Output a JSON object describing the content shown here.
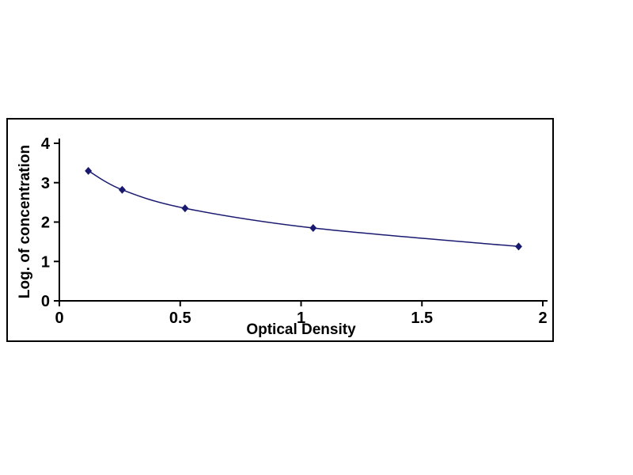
{
  "chart_data": {
    "type": "line",
    "title": "",
    "xlabel": "Optical Density",
    "ylabel": "Log. of concentration",
    "x": [
      0.12,
      0.26,
      0.52,
      1.05,
      1.9
    ],
    "y": [
      3.3,
      2.82,
      2.35,
      1.85,
      1.38
    ],
    "xlim": [
      0,
      2
    ],
    "ylim": [
      0,
      4
    ],
    "x_ticks": [
      0,
      0.5,
      1,
      1.5,
      2
    ],
    "x_tick_labels": [
      "0",
      "0.5",
      "1",
      "1.5",
      "2"
    ],
    "y_ticks": [
      0,
      1,
      2,
      3,
      4
    ],
    "y_tick_labels": [
      "0",
      "1",
      "2",
      "3",
      "4"
    ],
    "grid": false,
    "legend": "none",
    "marker": "diamond",
    "line_color": "#191970",
    "marker_color": "#191970",
    "axis_color": "#000000",
    "frame_color": "#000000",
    "background_color": "#ffffff"
  }
}
